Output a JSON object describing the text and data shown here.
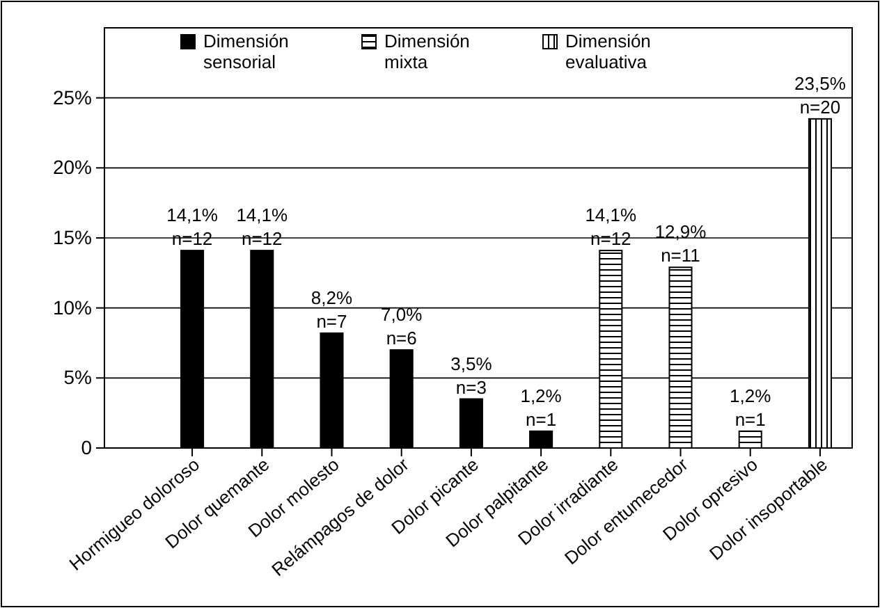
{
  "chart_data": {
    "type": "bar",
    "categories": [
      "Hormigueo doloroso",
      "Dolor quemante",
      "Dolor molesto",
      "Relámpagos de dolor",
      "Dolor picante",
      "Dolor palpitante",
      "Dolor irradiante",
      "Dolor entumecedor",
      "Dolor opresivo",
      "Dolor insoportable"
    ],
    "series": [
      {
        "name": "Dimensión sensorial",
        "color": "#000000",
        "values": [
          14.1,
          14.1,
          8.2,
          7.0,
          3.5,
          1.2,
          null,
          null,
          null,
          null
        ],
        "value_labels": [
          "14,1%\nn=12",
          "14,1%\nn=12",
          "8,2%\nn=7",
          "7,0%\nn=6",
          "3,5%\nn=3",
          "1,2%\nn=1",
          null,
          null,
          null,
          null
        ]
      },
      {
        "name": "Dimensión mixta",
        "color": "#000000",
        "values": [
          null,
          null,
          null,
          null,
          null,
          null,
          14.1,
          12.9,
          1.2,
          null
        ],
        "value_labels": [
          null,
          null,
          null,
          null,
          null,
          null,
          "14,1%\nn=12",
          "12,9%\nn=11",
          "1,2%\nn=1",
          null
        ]
      },
      {
        "name": "Dimensión evaluativa",
        "color": "#000000",
        "values": [
          null,
          null,
          null,
          null,
          null,
          null,
          null,
          null,
          null,
          23.5
        ],
        "value_labels": [
          null,
          null,
          null,
          null,
          null,
          null,
          null,
          null,
          null,
          "23,5%\nn=20"
        ]
      }
    ],
    "ylim": [
      0,
      30
    ],
    "yticks": [
      0,
      {
        "value": 5,
        "label": "5%"
      },
      {
        "value": 10,
        "label": "10%"
      },
      {
        "value": 15,
        "label": "15%"
      },
      {
        "value": 20,
        "label": "20%"
      },
      {
        "value": 25,
        "label": "25%"
      }
    ],
    "grid": "y",
    "legend": "top"
  }
}
